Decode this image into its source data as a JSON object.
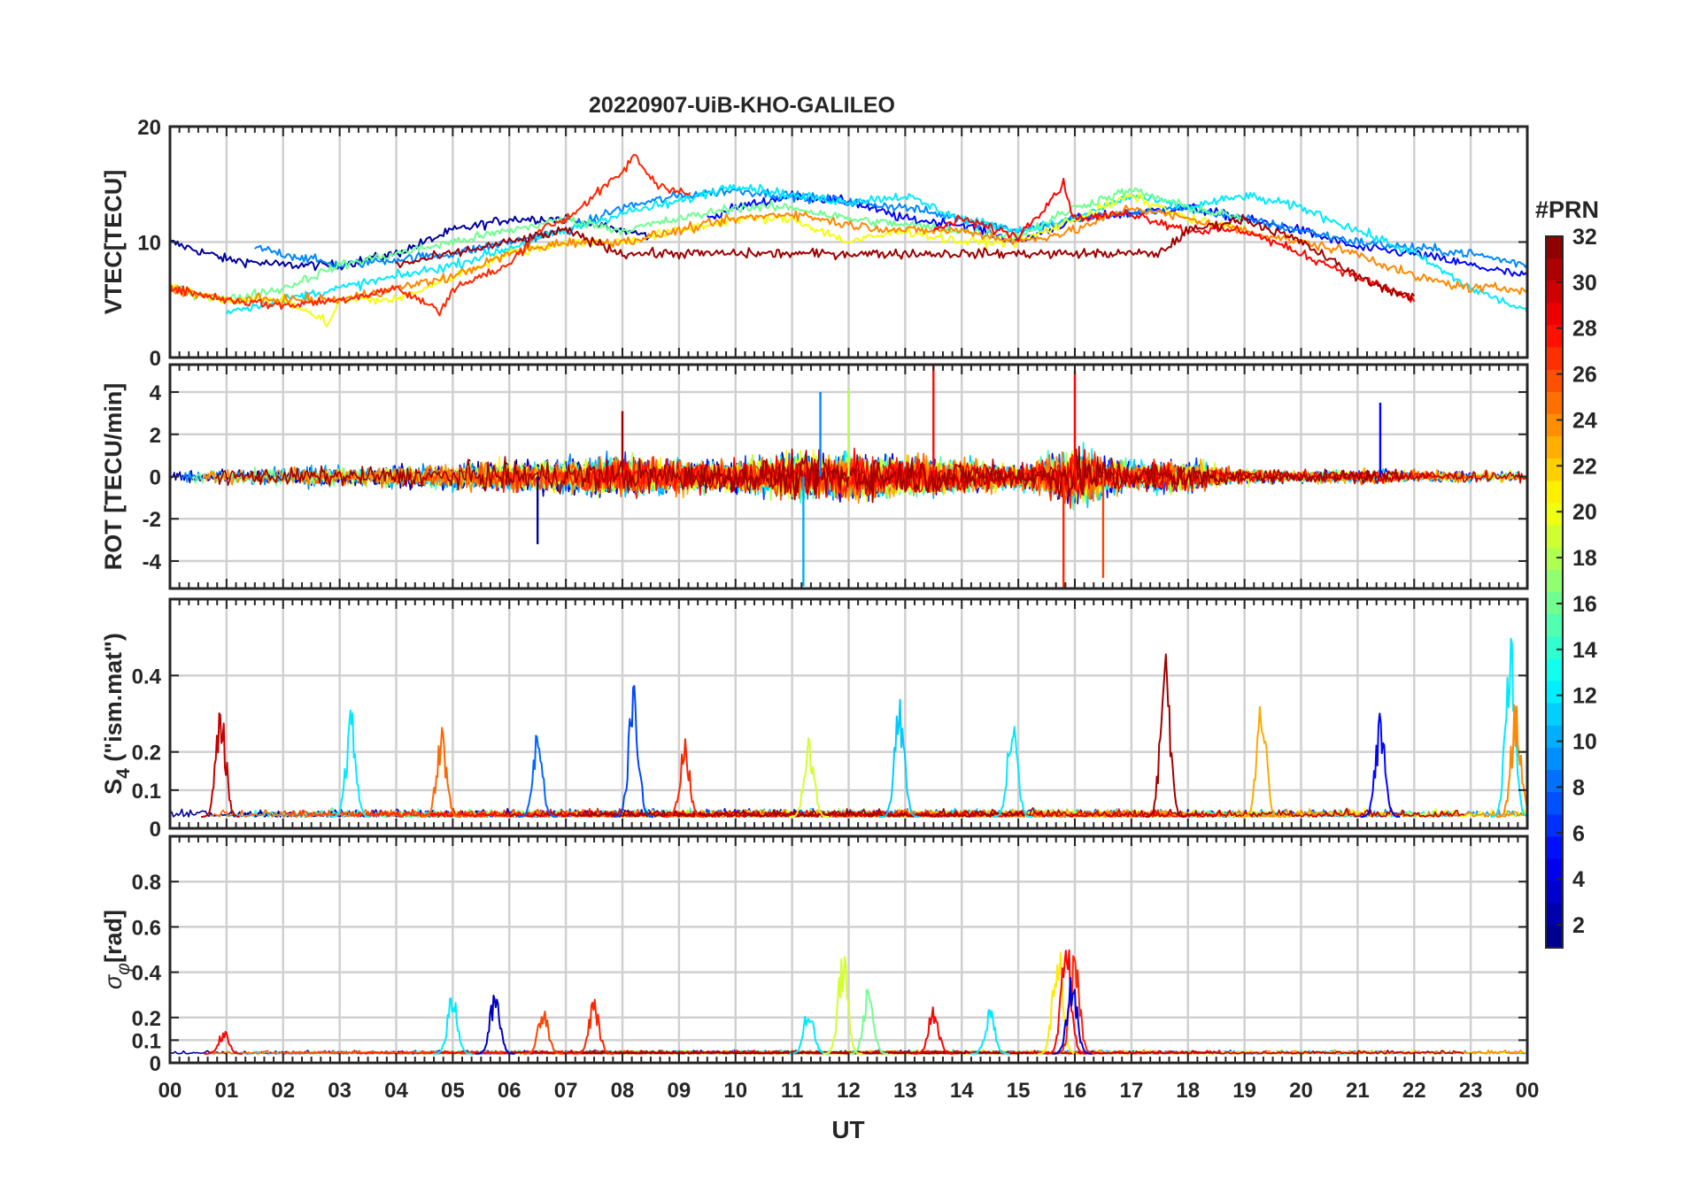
{
  "title": "20220907-UiB-KHO-GALILEO",
  "x_axis": {
    "label": "UT",
    "range": [
      0,
      24
    ],
    "tick_labels": [
      "00",
      "01",
      "02",
      "03",
      "04",
      "05",
      "06",
      "07",
      "08",
      "09",
      "10",
      "11",
      "12",
      "13",
      "14",
      "15",
      "16",
      "17",
      "18",
      "19",
      "20",
      "21",
      "22",
      "23",
      "00"
    ]
  },
  "colorbar": {
    "title": "#PRN",
    "range": [
      1,
      32
    ],
    "tick_labels": [
      "2",
      "4",
      "6",
      "8",
      "10",
      "12",
      "14",
      "16",
      "18",
      "20",
      "22",
      "24",
      "26",
      "28",
      "30",
      "32"
    ],
    "colormap": "jet",
    "colors": [
      "#00008f",
      "#0000ff",
      "#0080ff",
      "#00ffff",
      "#80ff80",
      "#ffff00",
      "#ff8000",
      "#ff0000",
      "#800000"
    ]
  },
  "chart_data": [
    {
      "type": "line",
      "panel": "vtec",
      "ylabel": "VTEC[TECU]",
      "ylim": [
        0,
        20
      ],
      "yticks": [
        "0",
        "10",
        "20"
      ],
      "grid": true,
      "note": "Multiple GALILEO PRN traces, values approximate",
      "series": [
        {
          "name": "PRN 2",
          "prn": 2,
          "x": [
            0,
            1,
            2,
            3,
            4,
            5,
            6,
            7,
            8,
            8.5
          ],
          "values": [
            10,
            8.5,
            8,
            8,
            9,
            11,
            12,
            12,
            11,
            10.5
          ]
        },
        {
          "name": "PRN 5",
          "prn": 5,
          "x": [
            9.5,
            10,
            11,
            12,
            13,
            14,
            15,
            16,
            17,
            18,
            19,
            20,
            21,
            22,
            23,
            24
          ],
          "values": [
            12,
            13,
            14,
            13.5,
            12,
            11.5,
            10,
            12,
            12.5,
            13,
            12,
            11,
            9.5,
            9,
            8,
            7
          ]
        },
        {
          "name": "PRN 9",
          "prn": 9,
          "x": [
            1.5,
            2,
            3,
            4,
            5,
            6,
            7,
            8,
            9,
            10,
            11,
            12,
            13,
            14,
            15,
            16,
            17,
            18,
            19,
            20,
            21,
            22,
            23,
            24
          ],
          "values": [
            9.5,
            9,
            8,
            8.5,
            9,
            10,
            11,
            13,
            14,
            14.5,
            14,
            13.5,
            13,
            12,
            11,
            12,
            12.5,
            13,
            12,
            11,
            10,
            9.5,
            9,
            8
          ]
        },
        {
          "name": "PRN 12",
          "prn": 12,
          "x": [
            1,
            2,
            3,
            4,
            5,
            6,
            7,
            8,
            9,
            10,
            11,
            12,
            13,
            14,
            15,
            16,
            17,
            18,
            19,
            20,
            21,
            22,
            23,
            24
          ],
          "values": [
            4,
            5,
            6,
            7,
            8,
            9.5,
            11,
            12.5,
            13.5,
            15,
            14,
            13.5,
            14,
            12,
            11,
            12,
            14,
            13,
            14,
            13,
            11,
            9,
            6,
            4
          ]
        },
        {
          "name": "PRN 16",
          "prn": 16,
          "x": [
            0,
            1,
            2,
            3,
            4,
            5,
            6,
            7,
            8,
            9,
            10,
            11,
            12,
            13,
            14,
            15,
            16,
            17,
            18,
            19
          ],
          "values": [
            6,
            5,
            6,
            8,
            9,
            10,
            11,
            12,
            11,
            12,
            13,
            13,
            12,
            11.5,
            11,
            10.5,
            13,
            14.5,
            13,
            12
          ]
        },
        {
          "name": "PRN 20",
          "prn": 20,
          "x": [
            0,
            1,
            2,
            2.8,
            3,
            4,
            5,
            6,
            7,
            8,
            9,
            10,
            11,
            12,
            13,
            14,
            15,
            16,
            17,
            18,
            19
          ],
          "values": [
            6,
            5,
            5,
            3,
            5,
            5,
            7,
            9,
            10,
            10,
            11,
            12,
            12,
            10,
            11,
            10,
            10,
            12,
            14,
            12,
            11
          ]
        },
        {
          "name": "PRN 24",
          "prn": 24,
          "x": [
            0,
            1,
            2,
            3,
            4,
            5,
            6,
            7,
            8,
            9,
            10,
            11,
            12,
            13,
            14,
            15,
            16,
            17,
            18,
            19,
            20,
            21,
            22,
            23,
            24
          ],
          "values": [
            6,
            5,
            5,
            5,
            6,
            7,
            9,
            10,
            10,
            11,
            12,
            12.5,
            11.5,
            11,
            11,
            10,
            11,
            13,
            12,
            11,
            10,
            9,
            7,
            6,
            6
          ]
        },
        {
          "name": "PRN 27",
          "prn": 27,
          "x": [
            0,
            1,
            2,
            3,
            4,
            4.8,
            5,
            6,
            6.5,
            7,
            7.5,
            8,
            8.2,
            8.6,
            9,
            9.2
          ],
          "values": [
            6,
            5,
            4.5,
            5,
            6,
            4,
            6,
            8,
            11,
            12,
            14,
            16,
            17.5,
            15,
            14.5,
            14
          ]
        },
        {
          "name": "PRN 28",
          "prn": 28,
          "x": [
            13.5,
            14,
            15,
            15.8,
            16,
            17,
            18,
            19,
            20,
            21,
            22
          ],
          "values": [
            11,
            12,
            10.5,
            15,
            12,
            12.5,
            11,
            11,
            9,
            7,
            5
          ]
        },
        {
          "name": "PRN 31",
          "prn": 31,
          "x": [
            4,
            5,
            6,
            7,
            8,
            17.5,
            18,
            19,
            20,
            21,
            22
          ],
          "values": [
            8,
            9,
            10,
            11,
            9,
            9,
            11,
            12,
            10,
            7,
            5
          ]
        }
      ]
    },
    {
      "type": "line",
      "panel": "rot",
      "ylabel": "ROT [TECU/min]",
      "ylim": [
        -5.3,
        5.3
      ],
      "yticks": [
        "-4",
        "-2",
        "0",
        "2",
        "4"
      ],
      "grid": true,
      "note": "Noisy fluctuations around 0; notable spikes listed",
      "peaks": [
        {
          "x": 6.5,
          "value": -3.2,
          "prn": 2
        },
        {
          "x": 8.0,
          "value": 3.1,
          "prn": 31
        },
        {
          "x": 11.2,
          "value": -5.2,
          "prn": 10
        },
        {
          "x": 11.5,
          "value": 4.0,
          "prn": 9
        },
        {
          "x": 12.0,
          "value": 4.2,
          "prn": 18
        },
        {
          "x": 13.5,
          "value": 5.3,
          "prn": 28
        },
        {
          "x": 15.8,
          "value": -5.3,
          "prn": 27
        },
        {
          "x": 16.0,
          "value": 5.0,
          "prn": 28
        },
        {
          "x": 16.5,
          "value": -4.8,
          "prn": 26
        },
        {
          "x": 21.4,
          "value": 3.5,
          "prn": 5
        }
      ],
      "envelope": {
        "x": [
          0,
          2,
          4,
          6,
          8,
          10,
          11,
          12,
          13,
          14,
          15,
          16,
          17,
          18,
          19,
          20,
          21,
          22,
          23,
          24
        ],
        "values": [
          1,
          1.2,
          1.4,
          2,
          2.6,
          2,
          3,
          3,
          2.6,
          2.4,
          1.6,
          4,
          2,
          2.2,
          1,
          0.8,
          1,
          0.9,
          0.8,
          0.6
        ]
      }
    },
    {
      "type": "line",
      "panel": "s4",
      "ylabel": "S4 (\"ism.mat\")",
      "ylabel_main": "S",
      "ylabel_sub": "4",
      "ylabel_rest": " (\"ism.mat\")",
      "ylim": [
        0,
        0.6
      ],
      "yticks": [
        "0",
        "0.1",
        "0.2",
        "0.4"
      ],
      "grid": true,
      "baseline": 0.03,
      "peaks": [
        {
          "x": 0.9,
          "value": 0.35,
          "prn": 30
        },
        {
          "x": 3.2,
          "value": 0.32,
          "prn": 12
        },
        {
          "x": 4.8,
          "value": 0.28,
          "prn": 25
        },
        {
          "x": 6.5,
          "value": 0.26,
          "prn": 8
        },
        {
          "x": 8.2,
          "value": 0.4,
          "prn": 7
        },
        {
          "x": 9.1,
          "value": 0.24,
          "prn": 27
        },
        {
          "x": 11.3,
          "value": 0.26,
          "prn": 19
        },
        {
          "x": 12.9,
          "value": 0.35,
          "prn": 11
        },
        {
          "x": 14.9,
          "value": 0.32,
          "prn": 12
        },
        {
          "x": 17.6,
          "value": 0.51,
          "prn": 31
        },
        {
          "x": 19.3,
          "value": 0.34,
          "prn": 23
        },
        {
          "x": 21.4,
          "value": 0.31,
          "prn": 5
        },
        {
          "x": 23.7,
          "value": 0.52,
          "prn": 12
        },
        {
          "x": 23.8,
          "value": 0.35,
          "prn": 24
        }
      ]
    },
    {
      "type": "line",
      "panel": "sigma_phi",
      "ylabel": "σφ[rad]",
      "ylabel_main": "σ",
      "ylabel_sub": "φ",
      "ylabel_rest": "[rad]",
      "ylim": [
        0,
        1
      ],
      "yticks": [
        "0",
        "0.1",
        "0.2",
        "0.4",
        "0.6",
        "0.8"
      ],
      "grid": true,
      "baseline": 0.04,
      "peaks": [
        {
          "x": 0.95,
          "value": 0.15,
          "prn": 28
        },
        {
          "x": 5.0,
          "value": 0.34,
          "prn": 12
        },
        {
          "x": 5.75,
          "value": 0.35,
          "prn": 3
        },
        {
          "x": 6.6,
          "value": 0.28,
          "prn": 26
        },
        {
          "x": 7.5,
          "value": 0.3,
          "prn": 27
        },
        {
          "x": 11.3,
          "value": 0.28,
          "prn": 12
        },
        {
          "x": 11.9,
          "value": 0.51,
          "prn": 19
        },
        {
          "x": 12.35,
          "value": 0.38,
          "prn": 16
        },
        {
          "x": 13.5,
          "value": 0.28,
          "prn": 28
        },
        {
          "x": 14.5,
          "value": 0.25,
          "prn": 12
        },
        {
          "x": 15.7,
          "value": 0.6,
          "prn": 21
        },
        {
          "x": 15.85,
          "value": 0.6,
          "prn": 28
        },
        {
          "x": 16.0,
          "value": 0.5,
          "prn": 27
        },
        {
          "x": 15.95,
          "value": 0.4,
          "prn": 4
        }
      ]
    }
  ]
}
